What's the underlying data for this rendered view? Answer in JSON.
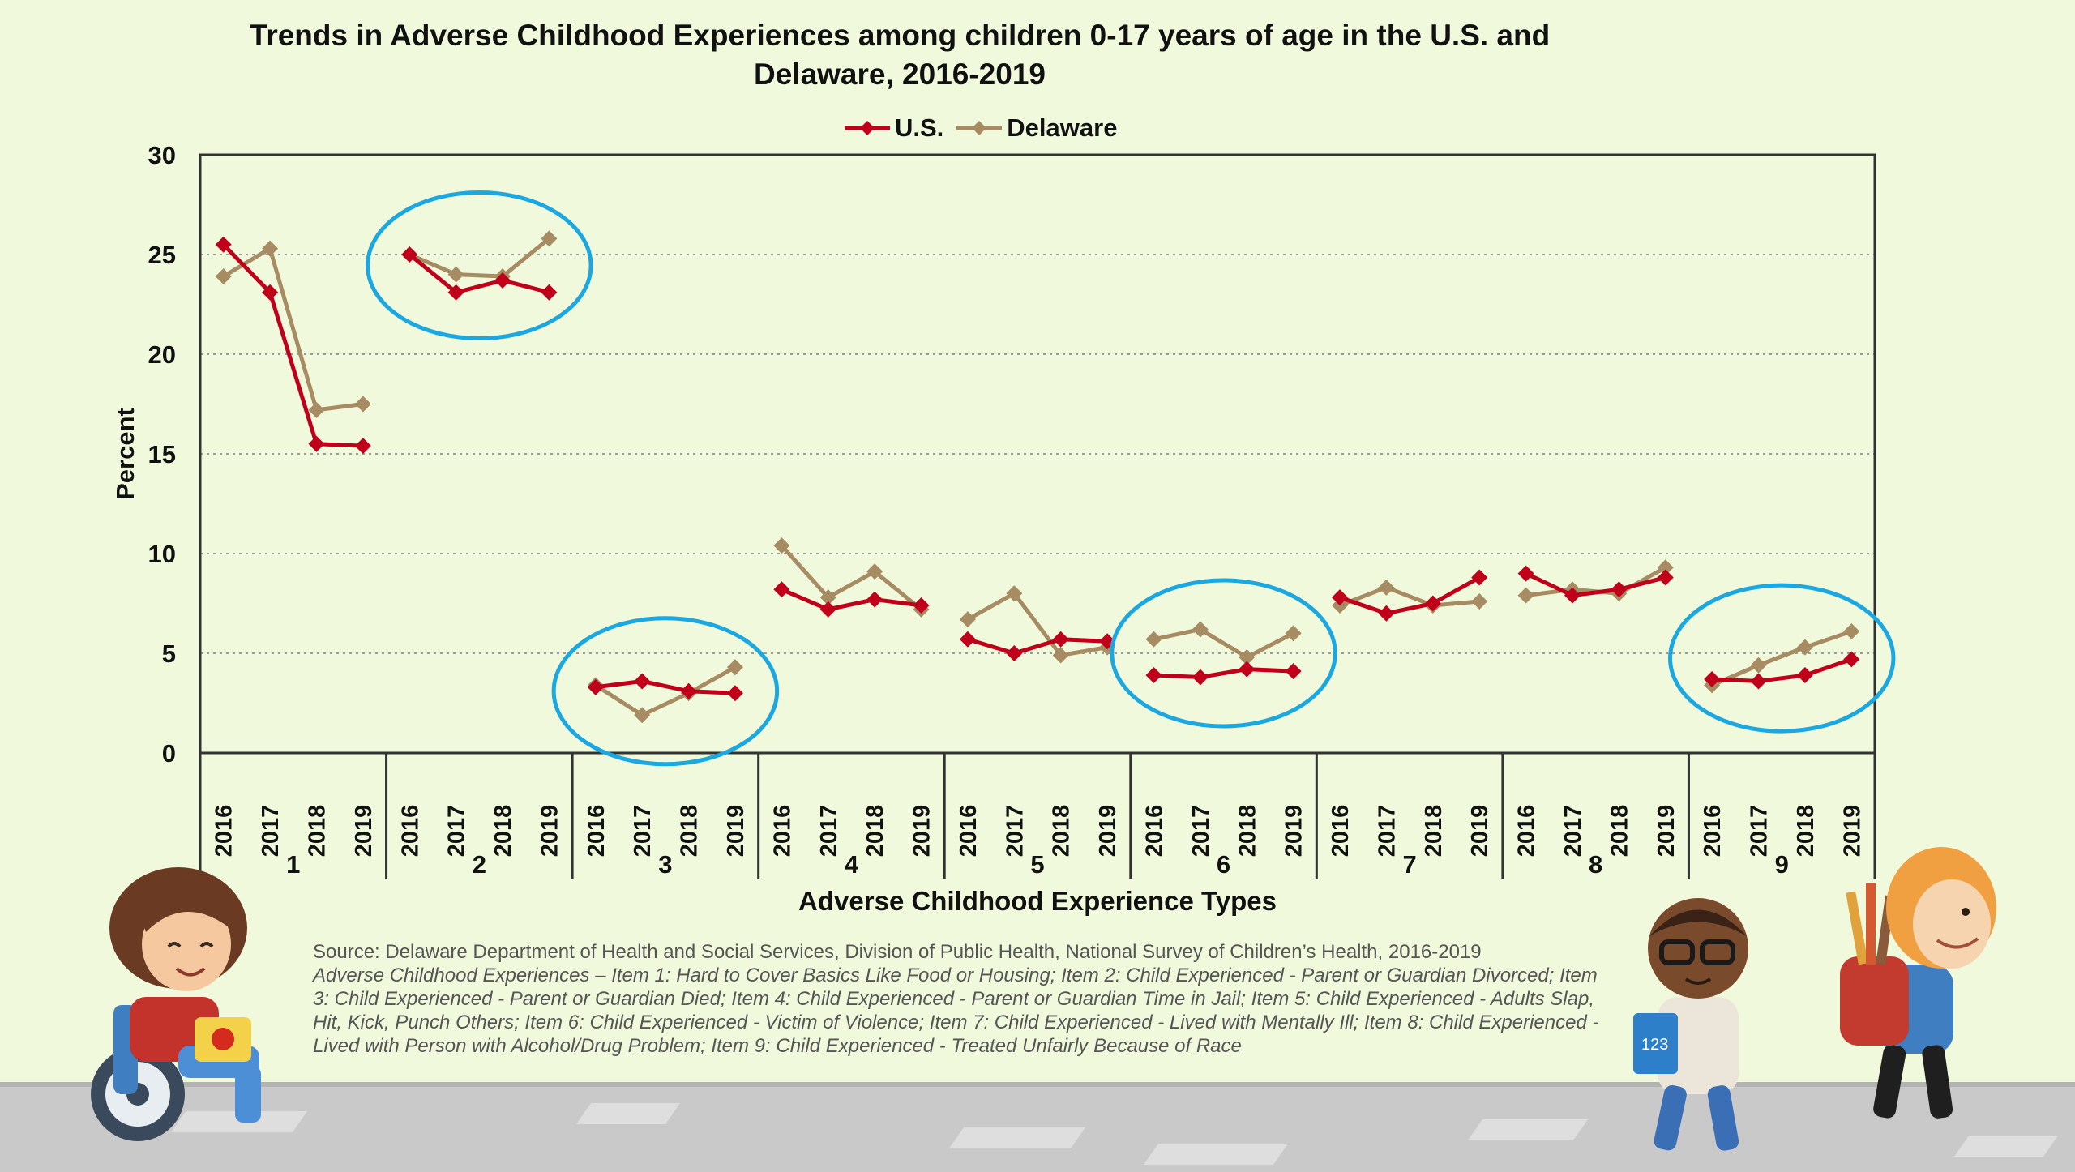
{
  "title": "Trends in Adverse Childhood Experiences among children 0-17 years of age in the U.S. and Delaware, 2016-2019",
  "legend": {
    "us_label": "U.S.",
    "delaware_label": "Delaware"
  },
  "colors": {
    "us": "#c0001a",
    "delaware": "#a68b63",
    "highlight_circle": "#1ba7e0",
    "background": "#f1f9dc"
  },
  "chart_data": {
    "type": "line",
    "title": "Trends in Adverse Childhood Experiences among children 0-17 years of age in the U.S. and Delaware, 2016-2019",
    "xlabel": "Adverse Childhood Experience Types",
    "ylabel": "Percent",
    "ylim": [
      0,
      30
    ],
    "yticks": [
      "0",
      "5",
      "10",
      "15",
      "20",
      "25",
      "30"
    ],
    "grid": "horizontal dotted",
    "legend_position": "top-center",
    "groups": [
      "1",
      "2",
      "3",
      "4",
      "5",
      "6",
      "7",
      "8",
      "9"
    ],
    "years": [
      "2016",
      "2017",
      "2018",
      "2019"
    ],
    "highlighted_groups": [
      "2",
      "3",
      "6",
      "9"
    ],
    "series": [
      {
        "name": "U.S.",
        "values": [
          [
            25.5,
            23.1,
            15.5,
            15.4
          ],
          [
            25.0,
            23.1,
            23.7,
            23.1
          ],
          [
            3.3,
            3.6,
            3.1,
            3.0
          ],
          [
            8.2,
            7.2,
            7.7,
            7.4
          ],
          [
            5.7,
            5.0,
            5.7,
            5.6
          ],
          [
            3.9,
            3.8,
            4.2,
            4.1
          ],
          [
            7.8,
            7.0,
            7.5,
            8.8
          ],
          [
            9.0,
            7.9,
            8.2,
            8.8
          ],
          [
            3.7,
            3.6,
            3.9,
            4.7
          ]
        ]
      },
      {
        "name": "Delaware",
        "values": [
          [
            23.9,
            25.3,
            17.2,
            17.5
          ],
          [
            25.0,
            24.0,
            23.9,
            25.8
          ],
          [
            3.4,
            1.9,
            3.0,
            4.3
          ],
          [
            10.4,
            7.8,
            9.1,
            7.2
          ],
          [
            6.7,
            8.0,
            4.9,
            5.3
          ],
          [
            5.7,
            6.2,
            4.8,
            6.0
          ],
          [
            7.4,
            8.3,
            7.4,
            7.6
          ],
          [
            7.9,
            8.2,
            8.0,
            9.3
          ],
          [
            3.4,
            4.4,
            5.3,
            6.1
          ]
        ]
      }
    ]
  },
  "notes": {
    "source": "Source: Delaware Department of Health and Social Services, Division of Public Health, National Survey of Children’s Health, 2016-2019",
    "definition": "Adverse Childhood Experiences – Item 1: Hard to Cover Basics Like Food or Housing; Item 2: Child Experienced - Parent or Guardian Divorced; Item 3: Child Experienced - Parent or Guardian Died; Item 4: Child Experienced - Parent or Guardian Time in Jail; Item 5: Child Experienced - Adults Slap, Hit, Kick, Punch Others; Item 6: Child Experienced - Victim of Violence; Item 7: Child Experienced - Lived with Mentally Ill; Item 8: Child Experienced - Lived with Person with Alcohol/Drug Problem; Item 9: Child Experienced - Treated Unfairly Because of Race"
  },
  "illustrations": [
    "girl-in-wheelchair-icon",
    "boy-with-glasses-icon",
    "boy-with-backpack-icon"
  ]
}
